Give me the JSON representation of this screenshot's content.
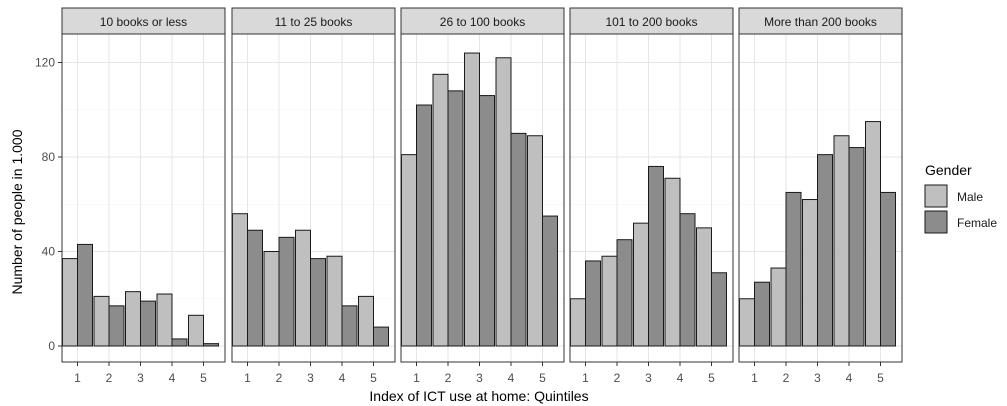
{
  "chart_data": {
    "type": "bar",
    "facets": [
      "10 books or less",
      "11 to 25 books",
      "26 to 100 books",
      "101 to 200 books",
      "More than 200 books"
    ],
    "categories": [
      "1",
      "2",
      "3",
      "4",
      "5"
    ],
    "xlabel": "Index of ICT use at home: Quintiles",
    "ylabel": "Number of people in 1.000",
    "ylim": [
      0,
      130
    ],
    "yticks": [
      "0",
      "40",
      "80",
      "120"
    ],
    "grid": true,
    "legend": {
      "title": "Gender",
      "position": "right",
      "entries": [
        "Male",
        "Female"
      ]
    },
    "series": [
      {
        "name": "Male",
        "color": "#bfbfbf",
        "values": [
          [
            37,
            21,
            23,
            22,
            13
          ],
          [
            56,
            40,
            49,
            38,
            21
          ],
          [
            81,
            115,
            124,
            122,
            89
          ],
          [
            20,
            38,
            52,
            71,
            50
          ],
          [
            20,
            33,
            62,
            89,
            95
          ]
        ]
      },
      {
        "name": "Female",
        "color": "#8c8c8c",
        "values": [
          [
            43,
            17,
            19,
            3,
            1
          ],
          [
            49,
            46,
            37,
            17,
            8
          ],
          [
            102,
            108,
            106,
            90,
            55
          ],
          [
            36,
            45,
            76,
            56,
            31
          ],
          [
            27,
            65,
            81,
            84,
            65
          ]
        ]
      }
    ]
  }
}
